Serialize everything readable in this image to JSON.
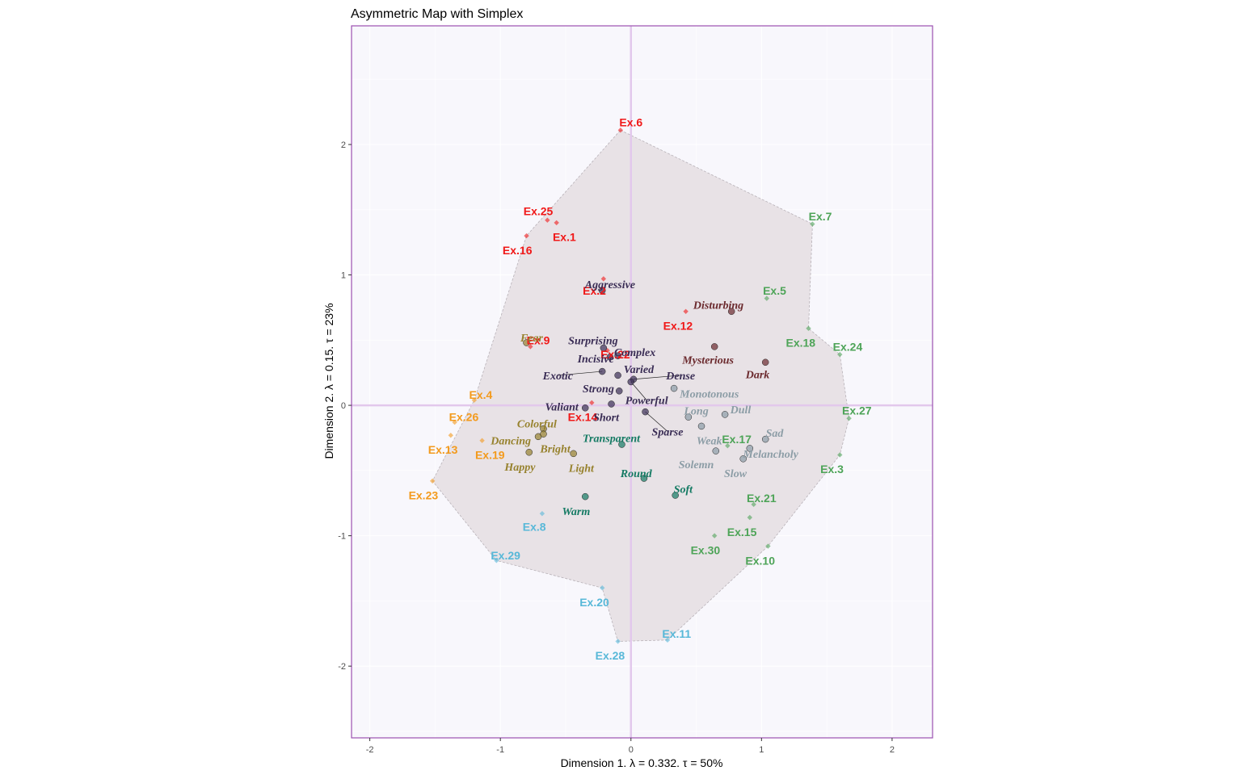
{
  "chart_data": {
    "type": "scatter",
    "title": "Asymmetric Map with Simplex",
    "xlabel": "Dimension 1.   λ = 0.332.  τ = 50%",
    "ylabel": "Dimension 2.   λ = 0.15.  τ = 23%",
    "xlim": [
      -2.14,
      2.31
    ],
    "ylim": [
      -2.55,
      2.91
    ],
    "xticks": [
      -2,
      -1,
      0,
      1,
      2
    ],
    "yticks": [
      -2,
      -1,
      0,
      1,
      2
    ],
    "grid": true,
    "legend": "none",
    "colors": {
      "panel_bg": "#f8f7fc",
      "panel_border": "#9b4fb0",
      "grid": "#ffffff",
      "zero_line": "#e2c8ec",
      "hull_fill": "#e8e2e6",
      "hull_stroke": "#b8b2b8",
      "red": "#f01818",
      "orange": "#f39a1c",
      "blue": "#58b8d8",
      "green": "#4ea458",
      "navy": "#3a2d55",
      "olive": "#97822e",
      "teal": "#147a63",
      "maroon": "#6b2a2e",
      "gray": "#8c9da6"
    },
    "simplex_hull": [
      [
        -0.08,
        2.11
      ],
      [
        1.39,
        1.39
      ],
      [
        1.36,
        0.59
      ],
      [
        1.6,
        0.39
      ],
      [
        1.67,
        -0.1
      ],
      [
        1.6,
        -0.38
      ],
      [
        1.05,
        -1.08
      ],
      [
        0.28,
        -1.8
      ],
      [
        -0.1,
        -1.81
      ],
      [
        -0.22,
        -1.4
      ],
      [
        -1.03,
        -1.19
      ],
      [
        -1.52,
        -0.58
      ],
      [
        -1.2,
        0.04
      ],
      [
        -0.8,
        1.3
      ],
      [
        -0.08,
        2.11
      ]
    ],
    "exercises": [
      {
        "name": "Ex.6",
        "x": -0.08,
        "y": 2.11,
        "color": "red",
        "lx": 0.0,
        "ly": 2.17
      },
      {
        "name": "Ex.25",
        "x": -0.64,
        "y": 1.42,
        "color": "red",
        "lx": -0.71,
        "ly": 1.49
      },
      {
        "name": "Ex.1",
        "x": -0.57,
        "y": 1.4,
        "color": "red",
        "lx": -0.51,
        "ly": 1.29
      },
      {
        "name": "Ex.16",
        "x": -0.8,
        "y": 1.3,
        "color": "red",
        "lx": -0.87,
        "ly": 1.19
      },
      {
        "name": "Ex.2",
        "x": -0.21,
        "y": 0.97,
        "color": "red",
        "lx": -0.28,
        "ly": 0.88
      },
      {
        "name": "Ex.12",
        "x": 0.42,
        "y": 0.72,
        "color": "red",
        "lx": 0.36,
        "ly": 0.61
      },
      {
        "name": "Ex.9",
        "x": -0.77,
        "y": 0.45,
        "color": "red",
        "lx": -0.71,
        "ly": 0.5
      },
      {
        "name": "Ex.22",
        "x": -0.18,
        "y": 0.42,
        "color": "red",
        "lx": -0.12,
        "ly": 0.39
      },
      {
        "name": "Ex.14",
        "x": -0.3,
        "y": 0.02,
        "color": "red",
        "lx": -0.37,
        "ly": -0.09
      },
      {
        "name": "Ex.4",
        "x": -1.2,
        "y": 0.04,
        "color": "orange",
        "lx": -1.15,
        "ly": 0.08
      },
      {
        "name": "Ex.26",
        "x": -1.35,
        "y": -0.13,
        "color": "orange",
        "lx": -1.28,
        "ly": -0.09
      },
      {
        "name": "Ex.13",
        "x": -1.38,
        "y": -0.23,
        "color": "orange",
        "lx": -1.44,
        "ly": -0.34
      },
      {
        "name": "Ex.19",
        "x": -1.14,
        "y": -0.27,
        "color": "orange",
        "lx": -1.08,
        "ly": -0.38
      },
      {
        "name": "Ex.23",
        "x": -1.52,
        "y": -0.58,
        "color": "orange",
        "lx": -1.59,
        "ly": -0.69
      },
      {
        "name": "Ex.8",
        "x": -0.68,
        "y": -0.83,
        "color": "blue",
        "lx": -0.74,
        "ly": -0.93
      },
      {
        "name": "Ex.29",
        "x": -1.03,
        "y": -1.19,
        "color": "blue",
        "lx": -0.96,
        "ly": -1.15
      },
      {
        "name": "Ex.20",
        "x": -0.22,
        "y": -1.4,
        "color": "blue",
        "lx": -0.28,
        "ly": -1.51
      },
      {
        "name": "Ex.11",
        "x": 0.28,
        "y": -1.8,
        "color": "blue",
        "lx": 0.35,
        "ly": -1.75
      },
      {
        "name": "Ex.28",
        "x": -0.1,
        "y": -1.81,
        "color": "blue",
        "lx": -0.16,
        "ly": -1.92
      },
      {
        "name": "Ex.7",
        "x": 1.39,
        "y": 1.39,
        "color": "green",
        "lx": 1.45,
        "ly": 1.45
      },
      {
        "name": "Ex.5",
        "x": 1.04,
        "y": 0.82,
        "color": "green",
        "lx": 1.1,
        "ly": 0.88
      },
      {
        "name": "Ex.18",
        "x": 1.36,
        "y": 0.59,
        "color": "green",
        "lx": 1.3,
        "ly": 0.48
      },
      {
        "name": "Ex.24",
        "x": 1.6,
        "y": 0.39,
        "color": "green",
        "lx": 1.66,
        "ly": 0.45
      },
      {
        "name": "Ex.27",
        "x": 1.67,
        "y": -0.1,
        "color": "green",
        "lx": 1.73,
        "ly": -0.04
      },
      {
        "name": "Ex.3",
        "x": 1.6,
        "y": -0.38,
        "color": "green",
        "lx": 1.54,
        "ly": -0.49
      },
      {
        "name": "Ex.17",
        "x": 0.74,
        "y": -0.31,
        "color": "green",
        "lx": 0.81,
        "ly": -0.26
      },
      {
        "name": "Ex.21",
        "x": 0.94,
        "y": -0.76,
        "color": "green",
        "lx": 1.0,
        "ly": -0.71
      },
      {
        "name": "Ex.15",
        "x": 0.91,
        "y": -0.86,
        "color": "green",
        "lx": 0.85,
        "ly": -0.97
      },
      {
        "name": "Ex.30",
        "x": 0.64,
        "y": -1.0,
        "color": "green",
        "lx": 0.57,
        "ly": -1.11
      },
      {
        "name": "Ex.10",
        "x": 1.05,
        "y": -1.08,
        "color": "green",
        "lx": 0.99,
        "ly": -1.19
      }
    ],
    "attributes": [
      {
        "name": "Aggressive",
        "x": -0.22,
        "y": 0.88,
        "color": "navy",
        "lx": -0.16,
        "ly": 0.93
      },
      {
        "name": "Surprising",
        "x": -0.21,
        "y": 0.44,
        "color": "navy",
        "lx": -0.29,
        "ly": 0.5
      },
      {
        "name": "Complex",
        "x": -0.1,
        "y": 0.38,
        "color": "navy",
        "lx": 0.03,
        "ly": 0.41
      },
      {
        "name": "Incisive",
        "x": -0.16,
        "y": 0.37,
        "color": "navy",
        "lx": -0.27,
        "ly": 0.36
      },
      {
        "name": "Exotic",
        "x": -0.22,
        "y": 0.26,
        "color": "navy",
        "lx": -0.56,
        "ly": 0.23,
        "leader": true
      },
      {
        "name": "Varied",
        "x": -0.1,
        "y": 0.23,
        "color": "navy",
        "lx": 0.06,
        "ly": 0.28
      },
      {
        "name": "Dense",
        "x": 0.02,
        "y": 0.2,
        "color": "navy",
        "lx": 0.38,
        "ly": 0.23,
        "leader": true
      },
      {
        "name": "Strong",
        "x": -0.09,
        "y": 0.11,
        "color": "navy",
        "lx": -0.25,
        "ly": 0.13
      },
      {
        "name": "Powerful",
        "x": 0.0,
        "y": 0.18,
        "color": "navy",
        "lx": 0.12,
        "ly": 0.04,
        "leader": true
      },
      {
        "name": "Valiant",
        "x": -0.35,
        "y": -0.02,
        "color": "navy",
        "lx": -0.53,
        "ly": -0.01
      },
      {
        "name": "Short",
        "x": -0.15,
        "y": 0.01,
        "color": "navy",
        "lx": -0.19,
        "ly": -0.09
      },
      {
        "name": "Sparse",
        "x": 0.11,
        "y": -0.05,
        "color": "navy",
        "lx": 0.28,
        "ly": -0.2,
        "leader": true
      },
      {
        "name": "Fear",
        "x": -0.8,
        "y": 0.48,
        "color": "olive",
        "lx": -0.76,
        "ly": 0.52
      },
      {
        "name": "Colorful",
        "x": -0.67,
        "y": -0.18,
        "color": "olive",
        "lx": -0.72,
        "ly": -0.14
      },
      {
        "name": "Dancing",
        "x": -0.71,
        "y": -0.24,
        "color": "olive",
        "lx": -0.92,
        "ly": -0.27
      },
      {
        "name": "Bright",
        "x": -0.67,
        "y": -0.22,
        "color": "olive",
        "lx": -0.58,
        "ly": -0.33
      },
      {
        "name": "Happy",
        "x": -0.78,
        "y": -0.36,
        "color": "olive",
        "lx": -0.85,
        "ly": -0.47
      },
      {
        "name": "Light",
        "x": -0.44,
        "y": -0.37,
        "color": "olive",
        "lx": -0.38,
        "ly": -0.48
      },
      {
        "name": "Transparent",
        "x": -0.07,
        "y": -0.3,
        "color": "teal",
        "lx": -0.15,
        "ly": -0.25
      },
      {
        "name": "Round",
        "x": 0.1,
        "y": -0.56,
        "color": "teal",
        "lx": 0.04,
        "ly": -0.52
      },
      {
        "name": "Soft",
        "x": 0.34,
        "y": -0.69,
        "color": "teal",
        "lx": 0.4,
        "ly": -0.64
      },
      {
        "name": "Warm",
        "x": -0.35,
        "y": -0.7,
        "color": "teal",
        "lx": -0.42,
        "ly": -0.81
      },
      {
        "name": "Disturbing",
        "x": 0.77,
        "y": 0.72,
        "color": "maroon",
        "lx": 0.67,
        "ly": 0.77
      },
      {
        "name": "Mysterious",
        "x": 0.64,
        "y": 0.45,
        "color": "maroon",
        "lx": 0.59,
        "ly": 0.35
      },
      {
        "name": "Dark",
        "x": 1.03,
        "y": 0.33,
        "color": "maroon",
        "lx": 0.97,
        "ly": 0.24
      },
      {
        "name": "Monotonous",
        "x": 0.33,
        "y": 0.13,
        "color": "gray",
        "lx": 0.6,
        "ly": 0.09
      },
      {
        "name": "Long",
        "x": 0.44,
        "y": -0.09,
        "color": "gray",
        "lx": 0.5,
        "ly": -0.04
      },
      {
        "name": "Dull",
        "x": 0.72,
        "y": -0.07,
        "color": "gray",
        "lx": 0.84,
        "ly": -0.03
      },
      {
        "name": "Weak",
        "x": 0.54,
        "y": -0.16,
        "color": "gray",
        "lx": 0.6,
        "ly": -0.27
      },
      {
        "name": "Sad",
        "x": 1.03,
        "y": -0.26,
        "color": "gray",
        "lx": 1.1,
        "ly": -0.21
      },
      {
        "name": "Melancholy",
        "x": 0.91,
        "y": -0.33,
        "color": "gray",
        "lx": 1.07,
        "ly": -0.37
      },
      {
        "name": "Solemn",
        "x": 0.65,
        "y": -0.35,
        "color": "gray",
        "lx": 0.5,
        "ly": -0.45
      },
      {
        "name": "Slow",
        "x": 0.86,
        "y": -0.41,
        "color": "gray",
        "lx": 0.8,
        "ly": -0.52
      }
    ]
  }
}
